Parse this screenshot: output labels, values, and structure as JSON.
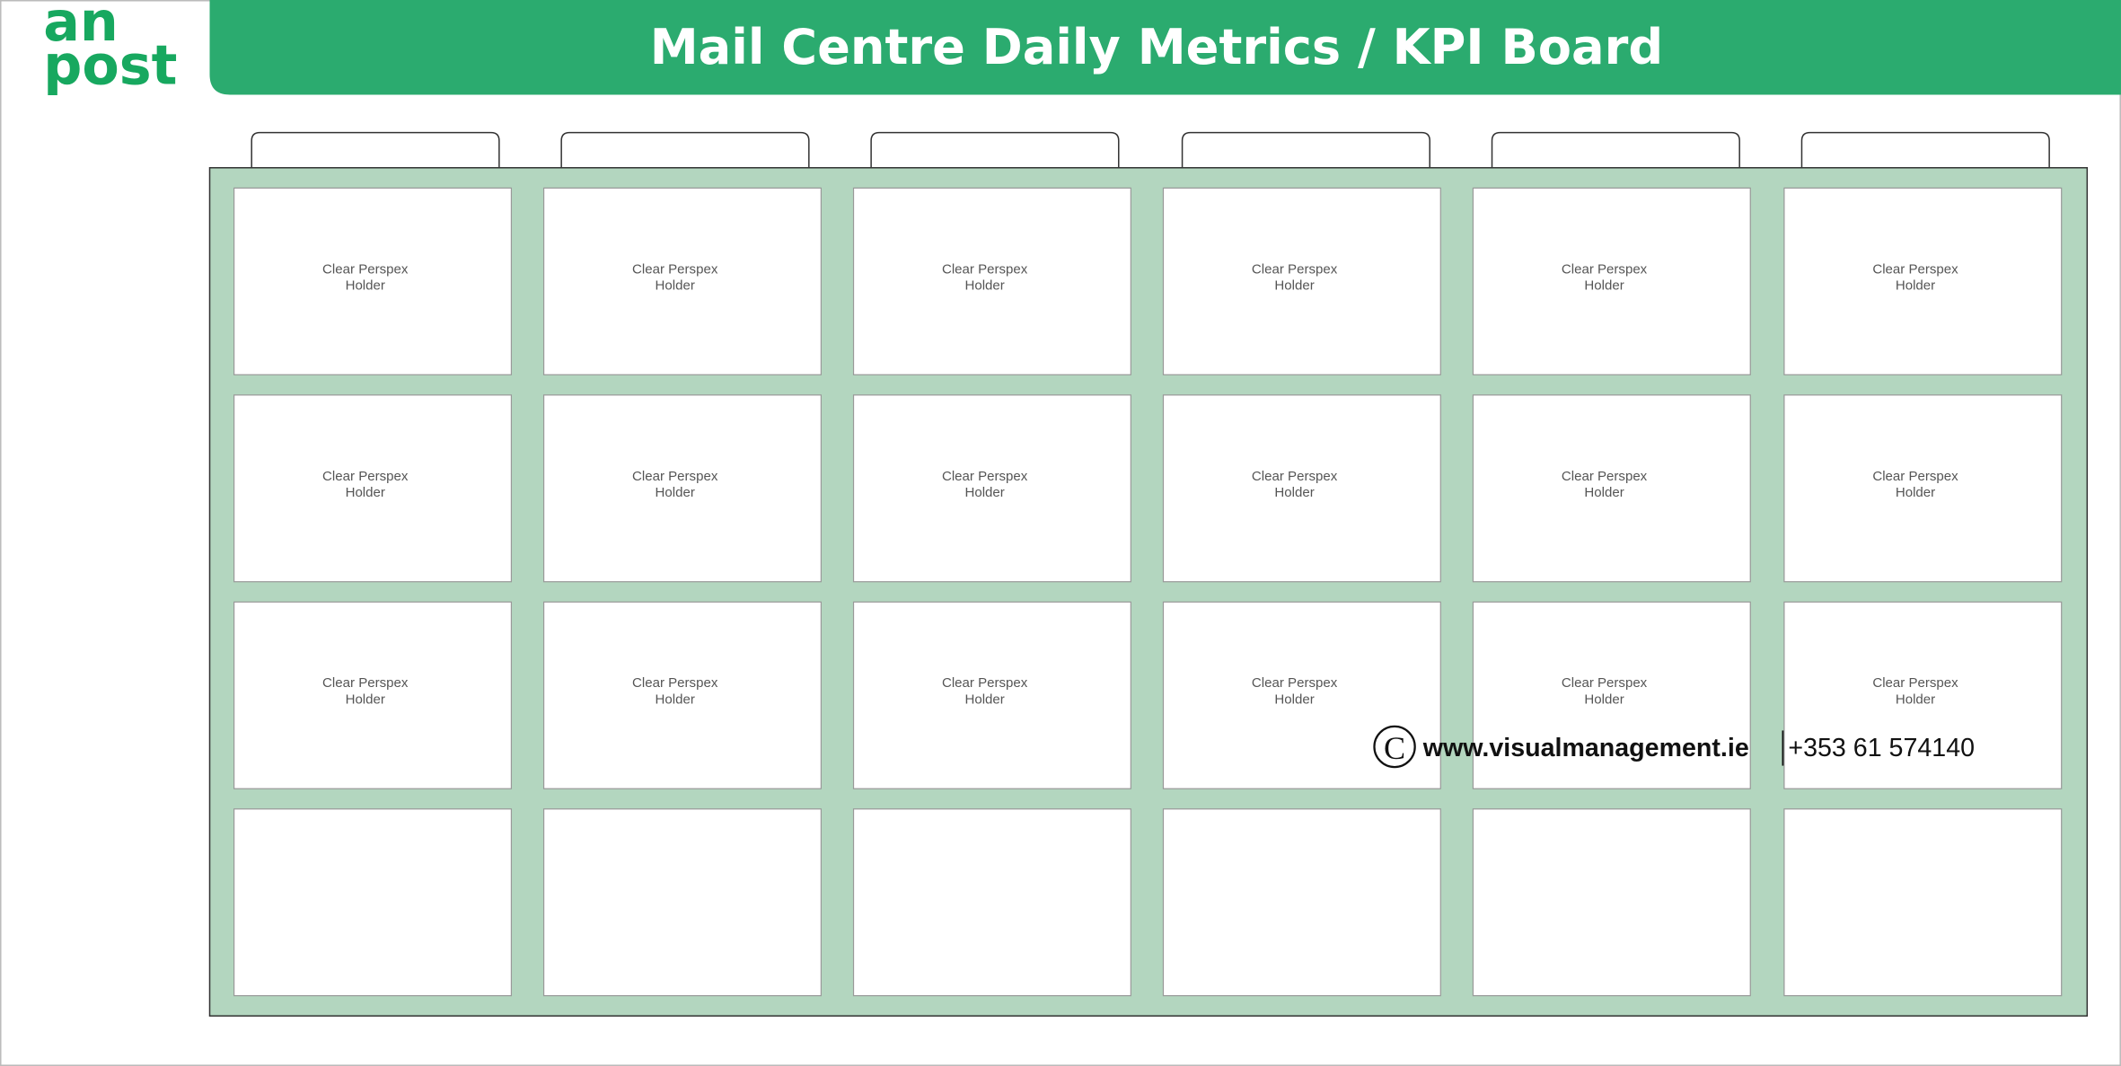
{
  "logo": {
    "line1": "an",
    "line2": "post"
  },
  "title": "Mail Centre Daily Metrics / KPI Board",
  "holders": [
    [
      "Clear Perspex",
      "Holder"
    ],
    [
      "Clear Perspex",
      "Holder"
    ],
    [
      "Clear Perspex",
      "Holder"
    ],
    [
      "Clear Perspex",
      "Holder"
    ],
    [
      "Clear Perspex",
      "Holder"
    ],
    [
      "Clear Perspex",
      "Holder"
    ],
    [
      "Clear Perspex",
      "Holder"
    ],
    [
      "Clear Perspex",
      "Holder"
    ],
    [
      "Clear Perspex",
      "Holder"
    ],
    [
      "Clear Perspex",
      "Holder"
    ],
    [
      "Clear Perspex",
      "Holder"
    ],
    [
      "Clear Perspex",
      "Holder"
    ],
    [
      "Clear Perspex",
      "Holder"
    ],
    [
      "Clear Perspex",
      "Holder"
    ],
    [
      "Clear Perspex",
      "Holder"
    ],
    [
      "Clear Perspex",
      "Holder"
    ],
    [
      "Clear Perspex",
      "Holder"
    ],
    [
      "Clear Perspex",
      "Holder"
    ]
  ],
  "footer": {
    "copyright": "C",
    "website": "www.visualmanagement.ie",
    "phone": "+353 61 574140"
  }
}
